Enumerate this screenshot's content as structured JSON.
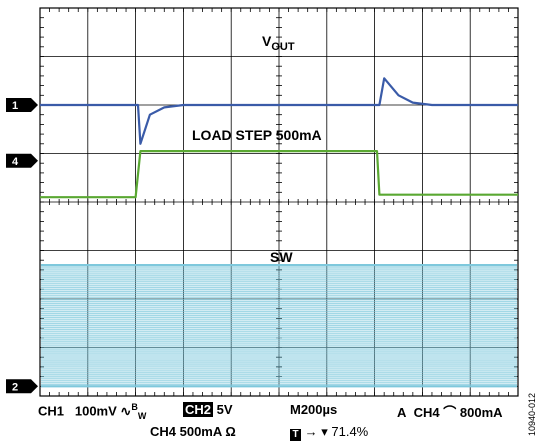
{
  "chart_data": {
    "type": "line",
    "divisions": {
      "x": 10,
      "y": 8
    },
    "grid": true,
    "time_per_div_us": 200,
    "series": [
      {
        "name": "V_OUT",
        "channel": "1",
        "units": "div",
        "color": "#3a5ba8",
        "points": [
          [
            0,
            6.0
          ],
          [
            2.05,
            6.0
          ],
          [
            2.1,
            5.2
          ],
          [
            2.3,
            5.8
          ],
          [
            2.6,
            5.95
          ],
          [
            3.0,
            6.0
          ],
          [
            7.1,
            6.0
          ],
          [
            7.2,
            6.55
          ],
          [
            7.5,
            6.2
          ],
          [
            7.8,
            6.05
          ],
          [
            8.2,
            6.0
          ],
          [
            10,
            6.0
          ]
        ]
      },
      {
        "name": "LOAD STEP 500mA",
        "channel": "4",
        "units": "div",
        "color": "#5aa832",
        "points": [
          [
            0,
            4.1
          ],
          [
            2.0,
            4.1
          ],
          [
            2.1,
            5.05
          ],
          [
            7.05,
            5.05
          ],
          [
            7.1,
            4.15
          ],
          [
            10,
            4.15
          ]
        ]
      },
      {
        "name": "SW",
        "channel": "2",
        "units": "div",
        "color": "#7ec8dc",
        "band": [
          0.2,
          2.7
        ]
      }
    ],
    "labels": {
      "vout_main": "V",
      "vout_sub": "OUT",
      "load": "LOAD STEP 500mA",
      "sw": "SW"
    },
    "channel_markers": [
      "1",
      "4",
      "2"
    ]
  },
  "readout": {
    "ch1_label": "CH1",
    "ch1_scale": "100mV",
    "bw_symbol": "∿",
    "bw_sub": "W",
    "bw_sup": "B",
    "ch2_label": "CH2",
    "ch2_scale": "5V",
    "timebase": "M200µs",
    "trigger_prefix": "A",
    "trigger_source": "CH4",
    "trigger_edge": "⌒",
    "trigger_level": "800mA",
    "ch4_scale": "CH4 500mA Ω",
    "t_marker": "T",
    "trigger_pos": "→ ▾ 71.4%"
  },
  "figure_id": "10940-012"
}
